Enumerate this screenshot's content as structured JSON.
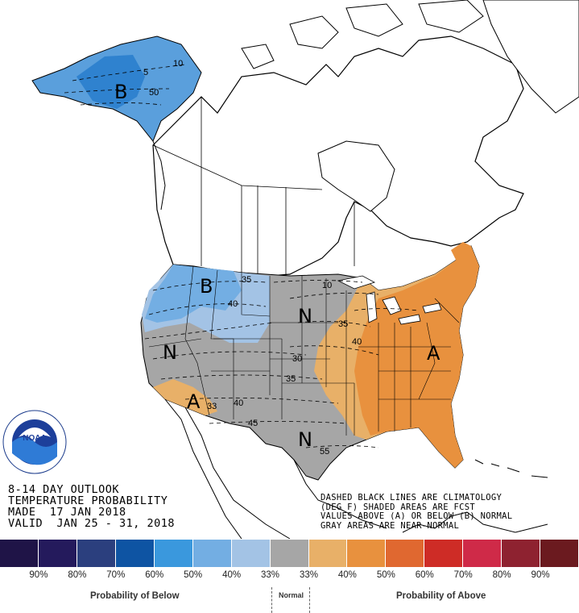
{
  "title_lines": [
    "8-14 DAY OUTLOOK",
    "TEMPERATURE PROBABILITY",
    "MADE  17 JAN 2018",
    "VALID  JAN 25 - 31, 2018"
  ],
  "notes": [
    "DASHED BLACK LINES ARE CLIMATOLOGY",
    "(DEG F) SHADED AREAS ARE FCST",
    "VALUES ABOVE (A) OR BELOW (B) NORMAL",
    "GRAY AREAS ARE NEAR-NORMAL"
  ],
  "logo_text": "NOAA",
  "logo_ring_text": "NATIONAL OCEANIC AND ATMOSPHERIC ADMINISTRATION · U.S. DEPARTMENT OF COMMERCE",
  "map_labels": {
    "alaska_b": "B",
    "northwest_b": "B",
    "west_n": "N",
    "central_n": "N",
    "south_n": "N",
    "southwest_a": "A",
    "east_a": "A"
  },
  "climatology_labels": {
    "ak_10": "10",
    "ak_5": "5",
    "ak_50": "50",
    "nw_35": "35",
    "nw_40": "40",
    "mw_10": "10",
    "mw_30": "30",
    "mw_35": "35",
    "gl_35": "35",
    "gl_40": "40",
    "sw_33": "33",
    "sw_40": "40",
    "sw_45": "45",
    "tx_55": "55"
  },
  "legend": {
    "colors": [
      "#1f1447",
      "#241a5c",
      "#2b3f7e",
      "#0e54a3",
      "#3a98dd",
      "#73aee3",
      "#a3c3e5",
      "#a6a6a6",
      "#e8b068",
      "#e8913e",
      "#e06830",
      "#ce2c26",
      "#cf2a48",
      "#8e2230",
      "#6b1a1f"
    ],
    "percent_labels": [
      "90%",
      "80%",
      "70%",
      "60%",
      "50%",
      "40%",
      "33%",
      "33%",
      "40%",
      "50%",
      "60%",
      "70%",
      "80%",
      "90%"
    ],
    "below_caption": "Probability of Below",
    "normal_caption": "Normal",
    "above_caption": "Probability of Above"
  }
}
